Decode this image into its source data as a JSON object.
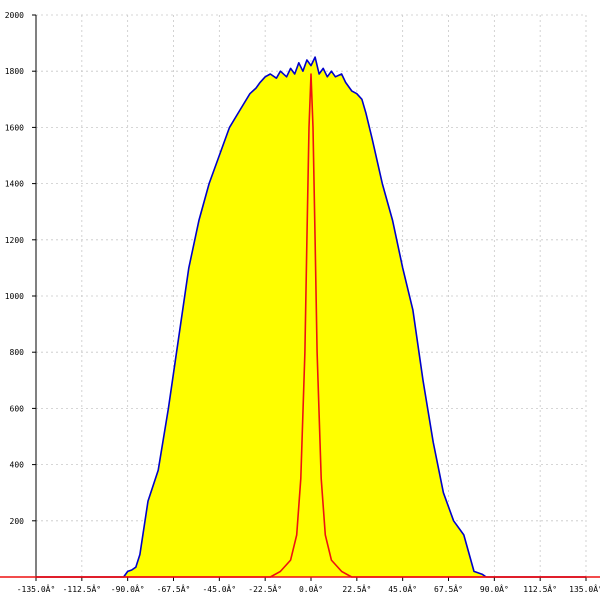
{
  "chart_data": {
    "type": "area",
    "title": "",
    "xlabel": "",
    "ylabel": "",
    "xlim": [
      -135,
      135
    ],
    "ylim": [
      0,
      2000
    ],
    "grid": true,
    "x_tick_values": [
      -135,
      -112.5,
      -90,
      -67.5,
      -45,
      -22.5,
      0,
      22.5,
      45,
      67.5,
      90,
      112.5,
      135
    ],
    "x_tick_labels": [
      "-135.0Â°",
      "-112.5Â°",
      "-90.0Â°",
      "-67.5Â°",
      "-45.0Â°",
      "-22.5Â°",
      "0.0Â°",
      "22.5Â°",
      "45.0Â°",
      "67.5Â°",
      "90.0Â°",
      "112.5Â°",
      "135.0Â°"
    ],
    "y_tick_values": [
      200,
      400,
      600,
      800,
      1000,
      1200,
      1400,
      1600,
      1800,
      2000
    ],
    "y_tick_labels": [
      "200",
      "400",
      "600",
      "800",
      "1000",
      "1200",
      "1400",
      "1600",
      "1800",
      "2000"
    ],
    "colors": {
      "fill": "#ffff00",
      "outline": "#0000cc",
      "peak": "#ee1111",
      "baseline": "#ee1111"
    },
    "series": [
      {
        "style": "filled-area",
        "x": [
          -135,
          -100,
          -92,
          -90,
          -88,
          -86,
          -84,
          -80,
          -75,
          -70,
          -65,
          -60,
          -55,
          -50,
          -45,
          -40,
          -35,
          -30,
          -27,
          -25,
          -22.5,
          -20,
          -17,
          -15,
          -12,
          -10,
          -8,
          -6,
          -4,
          -2,
          0,
          2,
          4,
          6,
          8,
          10,
          12,
          15,
          17,
          20,
          22.5,
          25,
          27,
          30,
          35,
          40,
          45,
          50,
          55,
          60,
          65,
          70,
          75,
          80,
          84,
          86,
          88,
          90,
          92,
          100,
          135
        ],
        "y": [
          0,
          0,
          0,
          20,
          25,
          35,
          80,
          270,
          380,
          600,
          850,
          1100,
          1270,
          1400,
          1500,
          1600,
          1660,
          1720,
          1740,
          1760,
          1780,
          1790,
          1775,
          1800,
          1780,
          1810,
          1790,
          1830,
          1800,
          1840,
          1820,
          1850,
          1790,
          1810,
          1780,
          1800,
          1780,
          1790,
          1760,
          1730,
          1720,
          1700,
          1650,
          1560,
          1400,
          1270,
          1100,
          950,
          700,
          480,
          300,
          200,
          150,
          20,
          10,
          0,
          0,
          0,
          0,
          0,
          0
        ]
      },
      {
        "style": "line",
        "x": [
          -135,
          -20,
          -15,
          -10,
          -7,
          -5,
          -3,
          -2,
          -1,
          0,
          1,
          2,
          3,
          5,
          7,
          10,
          15,
          20,
          135
        ],
        "y": [
          0,
          0,
          20,
          60,
          150,
          350,
          800,
          1200,
          1600,
          1790,
          1600,
          1200,
          800,
          350,
          150,
          60,
          20,
          0,
          0
        ]
      }
    ]
  }
}
